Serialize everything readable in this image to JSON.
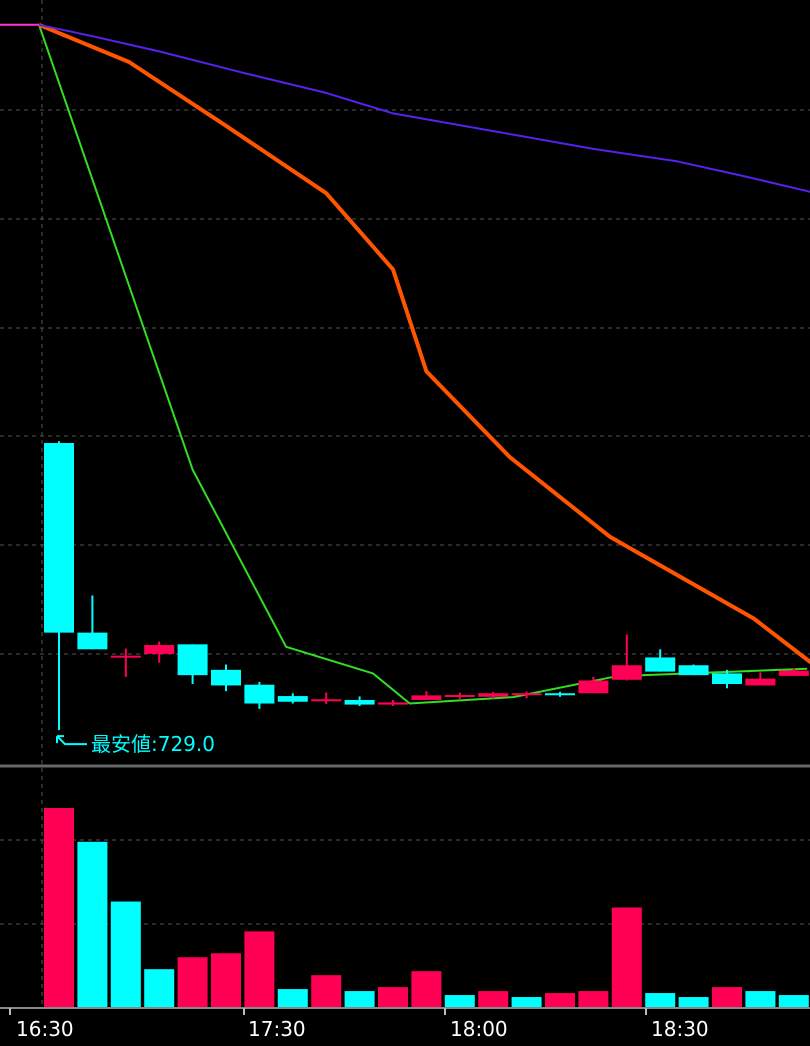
{
  "chart_data": [
    {
      "type": "candlestick",
      "title": "",
      "grid": true,
      "x_tick_labels": [
        "16:30",
        "17:30",
        "18:00",
        "18:30"
      ],
      "annotation": {
        "text": "最安値:729.0",
        "value": 729.0
      },
      "colors": {
        "up": "#ff0055",
        "down": "#00ffff",
        "ma_short": "#33dd22",
        "ma_mid": "#ff5500",
        "ma_long": "#5522ee",
        "grid": "#555555"
      },
      "ylim": [
        720,
        935
      ],
      "candles": [
        {
          "open": 810.0,
          "high": 810.5,
          "low": 729.0,
          "close": 756.5
        },
        {
          "open": 756.5,
          "high": 767.0,
          "low": 751.8,
          "close": 751.8
        },
        {
          "open": 749.8,
          "high": 752.0,
          "low": 744.0,
          "close": 750.0
        },
        {
          "open": 750.5,
          "high": 754.0,
          "low": 748.0,
          "close": 753.0
        },
        {
          "open": 753.2,
          "high": 753.2,
          "low": 742.0,
          "close": 744.5
        },
        {
          "open": 746.0,
          "high": 747.5,
          "low": 740.0,
          "close": 741.6
        },
        {
          "open": 741.8,
          "high": 742.6,
          "low": 735.0,
          "close": 736.5
        },
        {
          "open": 738.6,
          "high": 739.4,
          "low": 736.5,
          "close": 737.0
        },
        {
          "open": 737.7,
          "high": 739.6,
          "low": 736.4,
          "close": 737.7
        },
        {
          "open": 737.5,
          "high": 738.5,
          "low": 735.8,
          "close": 736.2
        },
        {
          "open": 736.2,
          "high": 737.5,
          "low": 735.8,
          "close": 736.8
        },
        {
          "open": 737.5,
          "high": 740.0,
          "low": 737.5,
          "close": 738.8
        },
        {
          "open": 738.4,
          "high": 739.6,
          "low": 737.8,
          "close": 738.9
        },
        {
          "open": 738.4,
          "high": 739.8,
          "low": 737.9,
          "close": 739.4
        },
        {
          "open": 738.9,
          "high": 739.9,
          "low": 738.0,
          "close": 739.4
        },
        {
          "open": 739.4,
          "high": 739.8,
          "low": 738.4,
          "close": 738.9
        },
        {
          "open": 739.4,
          "high": 744.0,
          "low": 739.4,
          "close": 743.0
        },
        {
          "open": 743.2,
          "high": 756.0,
          "low": 743.0,
          "close": 747.3
        },
        {
          "open": 749.5,
          "high": 751.8,
          "low": 745.5,
          "close": 745.5
        },
        {
          "open": 747.3,
          "high": 747.5,
          "low": 744.5,
          "close": 744.5
        },
        {
          "open": 745.0,
          "high": 746.0,
          "low": 740.8,
          "close": 742.0
        },
        {
          "open": 741.6,
          "high": 745.3,
          "low": 741.6,
          "close": 743.5
        },
        {
          "open": 744.3,
          "high": 746.5,
          "low": 744.3,
          "close": 745.8
        }
      ],
      "series": [
        {
          "values": [
            928.0,
            802.5,
            752.5,
            745.0,
            736.5,
            738.3,
            744.2,
            746.3
          ]
        },
        {
          "values": [
            928.0,
            917.5,
            899.5,
            880.5,
            859.0,
            830.2,
            806.0,
            783.5,
            760.5,
            746.0
          ]
        },
        {
          "values": [
            928.0,
            924.8,
            920.5,
            914.5,
            908.8,
            903.0,
            898.0,
            893.0,
            889.5,
            885.3,
            880.2
          ]
        }
      ],
      "ma_x_positions": [
        [
          -0.6,
          4.0,
          6.8,
          9.4,
          10.5,
          13.6,
          16.7,
          22.4
        ],
        [
          -0.6,
          2.1,
          5.0,
          8.0,
          10.0,
          11.0,
          13.5,
          16.5,
          20.8,
          22.8
        ],
        [
          -0.6,
          1.0,
          3.0,
          5.5,
          8.0,
          10.0,
          13.0,
          16.0,
          18.5,
          20.5,
          22.8
        ]
      ]
    },
    {
      "type": "bar",
      "title": "",
      "grid": true,
      "categories": [
        "1",
        "2",
        "3",
        "4",
        "5",
        "6",
        "7",
        "8",
        "9",
        "10",
        "11",
        "12",
        "13",
        "14",
        "15",
        "16",
        "17",
        "18",
        "19",
        "20",
        "21",
        "22",
        "23"
      ],
      "ylim": [
        0,
        100
      ],
      "values": [
        100,
        83,
        53,
        19,
        25,
        27,
        38,
        9,
        16,
        8,
        10,
        18,
        6,
        8,
        5,
        7,
        8,
        50,
        7,
        5,
        10,
        8,
        6
      ],
      "colors": [
        "up",
        "down",
        "down",
        "down",
        "up",
        "up",
        "up",
        "down",
        "up",
        "down",
        "up",
        "up",
        "down",
        "up",
        "down",
        "up",
        "up",
        "up",
        "down",
        "down",
        "up",
        "down",
        "down"
      ]
    }
  ]
}
